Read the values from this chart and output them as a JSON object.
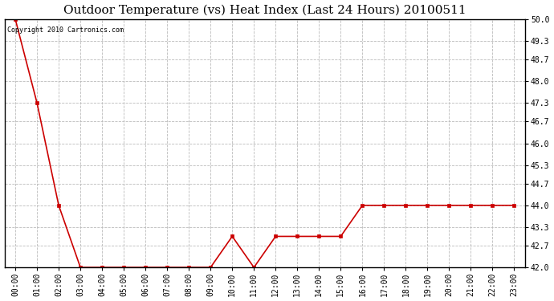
{
  "title": "Outdoor Temperature (vs) Heat Index (Last 24 Hours) 20100511",
  "copyright_text": "Copyright 2010 Cartronics.com",
  "x_labels": [
    "00:00",
    "01:00",
    "02:00",
    "03:00",
    "04:00",
    "05:00",
    "06:00",
    "07:00",
    "08:00",
    "09:00",
    "10:00",
    "11:00",
    "12:00",
    "13:00",
    "14:00",
    "15:00",
    "16:00",
    "17:00",
    "18:00",
    "19:00",
    "20:00",
    "21:00",
    "22:00",
    "23:00"
  ],
  "y_values": [
    50.0,
    47.3,
    44.0,
    42.0,
    42.0,
    42.0,
    42.0,
    42.0,
    42.0,
    42.0,
    43.0,
    42.0,
    43.0,
    43.0,
    43.0,
    43.0,
    44.0,
    44.0,
    44.0,
    44.0,
    44.0,
    44.0,
    44.0,
    44.0
  ],
  "ylim": [
    42.0,
    50.0
  ],
  "yticks": [
    42.0,
    42.7,
    43.3,
    44.0,
    44.7,
    45.3,
    46.0,
    46.7,
    47.3,
    48.0,
    48.7,
    49.3,
    50.0
  ],
  "line_color": "#cc0000",
  "marker_style": "s",
  "marker_size": 2.5,
  "background_color": "#ffffff",
  "plot_bg_color": "#ffffff",
  "grid_color": "#bbbbbb",
  "title_fontsize": 11,
  "tick_fontsize": 7,
  "copyright_fontsize": 6
}
